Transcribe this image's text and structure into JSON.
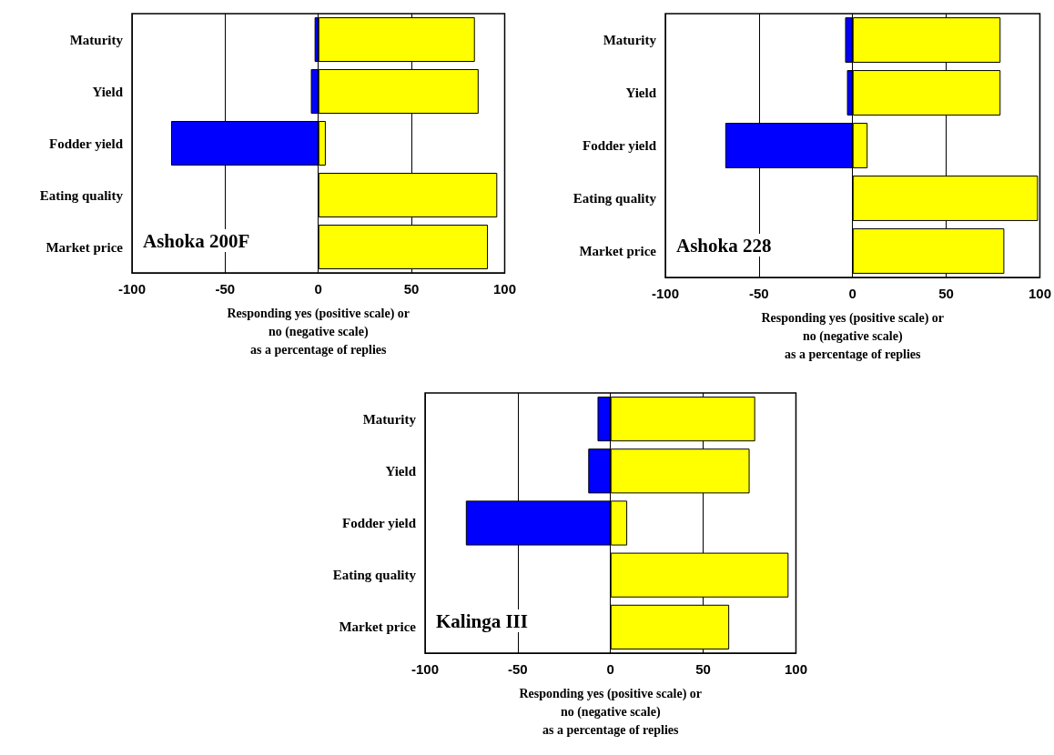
{
  "chart_data": [
    {
      "type": "bar",
      "orientation": "horizontal",
      "stacked": true,
      "title": "Ashoka 200F",
      "xlabel": "Responding yes (positive scale) or\nno (negative scale)\nas a percentage of replies",
      "categories": [
        "Maturity",
        "Yield",
        "Fodder yield",
        "Eating quality",
        "Market price"
      ],
      "series": [
        {
          "color": "#0000ff",
          "values": [
            -2,
            -4,
            -79,
            0,
            0
          ]
        },
        {
          "color": "#ffff00",
          "values": [
            84,
            86,
            4,
            96,
            91
          ]
        }
      ],
      "xlim": [
        -100,
        100
      ],
      "xticks": [
        -100,
        -50,
        0,
        50,
        100
      ],
      "grid": "x"
    },
    {
      "type": "bar",
      "orientation": "horizontal",
      "stacked": true,
      "title": "Ashoka 228",
      "xlabel": "Responding yes (positive scale) or\nno (negative scale)\nas a percentage of replies",
      "categories": [
        "Maturity",
        "Yield",
        "Fodder yield",
        "Eating quality",
        "Market price"
      ],
      "series": [
        {
          "color": "#0000ff",
          "values": [
            -4,
            -3,
            -68,
            0,
            0
          ]
        },
        {
          "color": "#ffff00",
          "values": [
            79,
            79,
            8,
            99,
            81
          ]
        }
      ],
      "xlim": [
        -100,
        100
      ],
      "xticks": [
        -100,
        -50,
        0,
        50,
        100
      ],
      "grid": "x"
    },
    {
      "type": "bar",
      "orientation": "horizontal",
      "stacked": true,
      "title": "Kalinga III",
      "xlabel": "Responding yes (positive scale) or\nno (negative scale)\nas a percentage of replies",
      "categories": [
        "Maturity",
        "Yield",
        "Fodder yield",
        "Eating quality",
        "Market price"
      ],
      "series": [
        {
          "color": "#0000ff",
          "values": [
            -7,
            -12,
            -78,
            0,
            0
          ]
        },
        {
          "color": "#ffff00",
          "values": [
            78,
            75,
            9,
            96,
            64
          ]
        }
      ],
      "xlim": [
        -100,
        100
      ],
      "xticks": [
        -100,
        -50,
        0,
        50,
        100
      ],
      "grid": "x"
    }
  ]
}
